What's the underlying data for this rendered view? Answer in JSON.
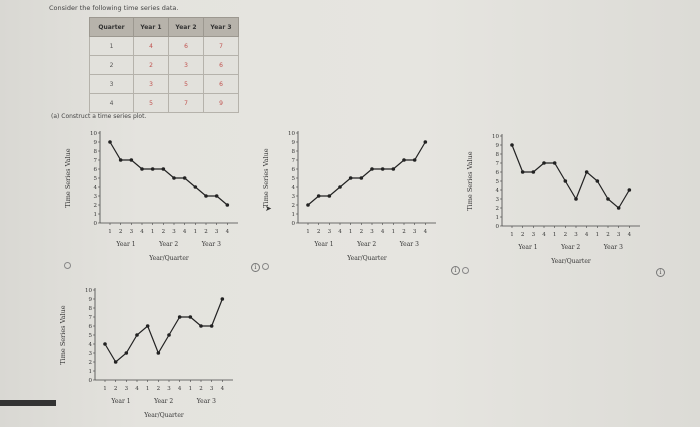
{
  "question": {
    "intro": "Consider the following time series data.",
    "part_a_label": "(a)  Construct a time series plot."
  },
  "table": {
    "headers": [
      "Quarter",
      "Year 1",
      "Year 2",
      "Year 3"
    ],
    "rows": [
      [
        "1",
        "4",
        "6",
        "7"
      ],
      [
        "2",
        "2",
        "3",
        "6"
      ],
      [
        "3",
        "3",
        "5",
        "6"
      ],
      [
        "4",
        "5",
        "7",
        "9"
      ]
    ],
    "value_color": "#c0504d"
  },
  "axis": {
    "ylabel": "Time Series Value",
    "xlabel": "Year/Quarter",
    "year_labels": [
      "Year 1",
      "Year 2",
      "Year 3"
    ],
    "quarter_ticks": [
      "1",
      "2",
      "3",
      "4",
      "1",
      "2",
      "3",
      "4",
      "1",
      "2",
      "3",
      "4"
    ],
    "y_ticks": [
      "0",
      "1",
      "2",
      "3",
      "4",
      "5",
      "6",
      "7",
      "8",
      "9",
      "10"
    ]
  },
  "options": [
    {
      "id": "option-a",
      "selected": false,
      "has_info_icon": true
    },
    {
      "id": "option-b",
      "selected": false,
      "has_info_icon": true
    },
    {
      "id": "option-c",
      "selected": false,
      "has_info_icon": true
    },
    {
      "id": "option-d",
      "selected": false,
      "has_info_icon": false
    }
  ],
  "info_icon_glyph": "i",
  "chart_data": [
    {
      "type": "line",
      "title": "Option A",
      "categories": [
        "Y1Q1",
        "Y1Q2",
        "Y1Q3",
        "Y1Q4",
        "Y2Q1",
        "Y2Q2",
        "Y2Q3",
        "Y2Q4",
        "Y3Q1",
        "Y3Q2",
        "Y3Q3",
        "Y3Q4"
      ],
      "values": [
        9,
        7,
        7,
        6,
        6,
        6,
        5,
        5,
        4,
        3,
        3,
        2
      ],
      "xlabel": "Year/Quarter",
      "ylabel": "Time Series Value",
      "ylim": [
        0,
        10
      ]
    },
    {
      "type": "line",
      "title": "Option B",
      "categories": [
        "Y1Q1",
        "Y1Q2",
        "Y1Q3",
        "Y1Q4",
        "Y2Q1",
        "Y2Q2",
        "Y2Q3",
        "Y2Q4",
        "Y3Q1",
        "Y3Q2",
        "Y3Q3",
        "Y3Q4"
      ],
      "values": [
        2,
        3,
        3,
        4,
        5,
        5,
        6,
        6,
        6,
        7,
        7,
        9
      ],
      "xlabel": "Year/Quarter",
      "ylabel": "Time Series Value",
      "ylim": [
        0,
        10
      ]
    },
    {
      "type": "line",
      "title": "Option C",
      "categories": [
        "Y1Q1",
        "Y1Q2",
        "Y1Q3",
        "Y1Q4",
        "Y2Q1",
        "Y2Q2",
        "Y2Q3",
        "Y2Q4",
        "Y3Q1",
        "Y3Q2",
        "Y3Q3",
        "Y3Q4"
      ],
      "values": [
        9,
        6,
        6,
        7,
        7,
        5,
        3,
        6,
        5,
        3,
        2,
        4
      ],
      "xlabel": "Year/Quarter",
      "ylabel": "Time Series Value",
      "ylim": [
        0,
        10
      ]
    },
    {
      "type": "line",
      "title": "Option D",
      "categories": [
        "Y1Q1",
        "Y1Q2",
        "Y1Q3",
        "Y1Q4",
        "Y2Q1",
        "Y2Q2",
        "Y2Q3",
        "Y2Q4",
        "Y3Q1",
        "Y3Q2",
        "Y3Q3",
        "Y3Q4"
      ],
      "values": [
        4,
        2,
        3,
        5,
        6,
        3,
        5,
        7,
        7,
        6,
        6,
        9
      ],
      "xlabel": "Year/Quarter",
      "ylabel": "Time Series Value",
      "ylim": [
        0,
        10
      ]
    }
  ]
}
